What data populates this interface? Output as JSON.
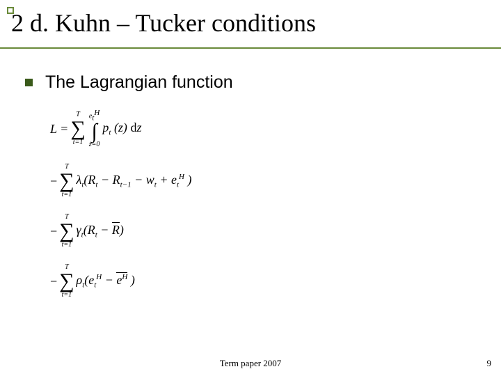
{
  "colors": {
    "accent": "#6a8a3a",
    "bullet": "#3a5a1a",
    "text": "#000000",
    "background": "#ffffff"
  },
  "title": "2 d. Kuhn – Tucker conditions",
  "bullet_text": "The Lagrangian function",
  "eq": {
    "L_eq": "L =",
    "sum_upper": "T",
    "sum_lower": "t=1",
    "int_upper": "eₜᴴ",
    "int_lower": "z=0",
    "line1_body": "pₜ (z) dz",
    "line2_pre": "−",
    "line2_mult": "λₜ",
    "line2_body": "(Rₜ − Rₜ₋₁ − wₜ + eₜᴴ )",
    "line3_mult": "γₜ",
    "line3_body_a": "(Rₜ − ",
    "line3_body_bar": "R",
    "line3_body_b": ")",
    "line4_mult": "ρₜ",
    "line4_body_a": "(eₜᴴ − ",
    "line4_body_bar": "eᴴ",
    "line4_body_b": " )"
  },
  "footer": "Term paper 2007",
  "page_number": "9"
}
